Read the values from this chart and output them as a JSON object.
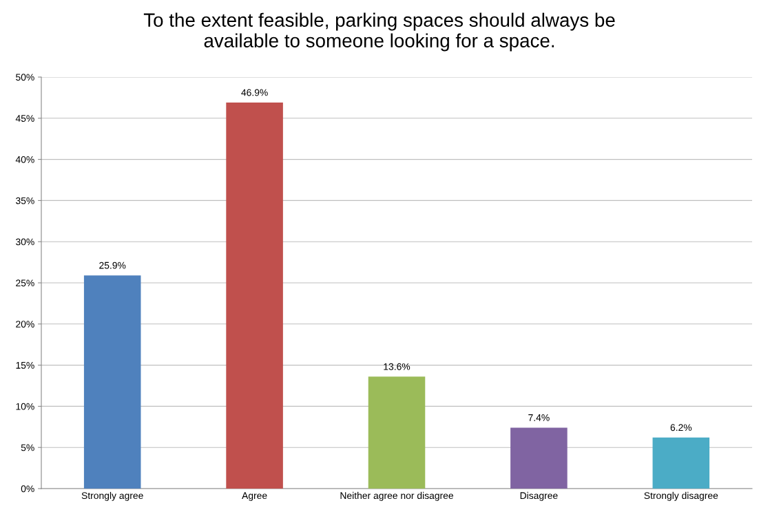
{
  "chart_data": {
    "type": "bar",
    "title": "To the extent feasible, parking spaces should always be\navailable to someone looking for a space.",
    "categories": [
      "Strongly agree",
      "Agree",
      "Neither agree nor disagree",
      "Disagree",
      "Strongly disagree"
    ],
    "values": [
      25.9,
      46.9,
      13.6,
      7.4,
      6.2
    ],
    "colors": [
      "#4f81bd",
      "#c0504d",
      "#9bbb59",
      "#8064a2",
      "#4bacc6"
    ],
    "value_labels": [
      "25.9%",
      "46.9%",
      "13.6%",
      "7.4%",
      "6.2%"
    ],
    "ylim": [
      0,
      50
    ],
    "yticks": [
      {
        "value": 0,
        "label": "0%"
      },
      {
        "value": 5,
        "label": "5%"
      },
      {
        "value": 10,
        "label": "10%"
      },
      {
        "value": 15,
        "label": "15%"
      },
      {
        "value": 20,
        "label": "20%"
      },
      {
        "value": 25,
        "label": "25%"
      },
      {
        "value": 30,
        "label": "30%"
      },
      {
        "value": 35,
        "label": "35%"
      },
      {
        "value": 40,
        "label": "40%"
      },
      {
        "value": 45,
        "label": "45%"
      },
      {
        "value": 50,
        "label": "50%"
      }
    ],
    "grid": "y",
    "legend": false
  }
}
